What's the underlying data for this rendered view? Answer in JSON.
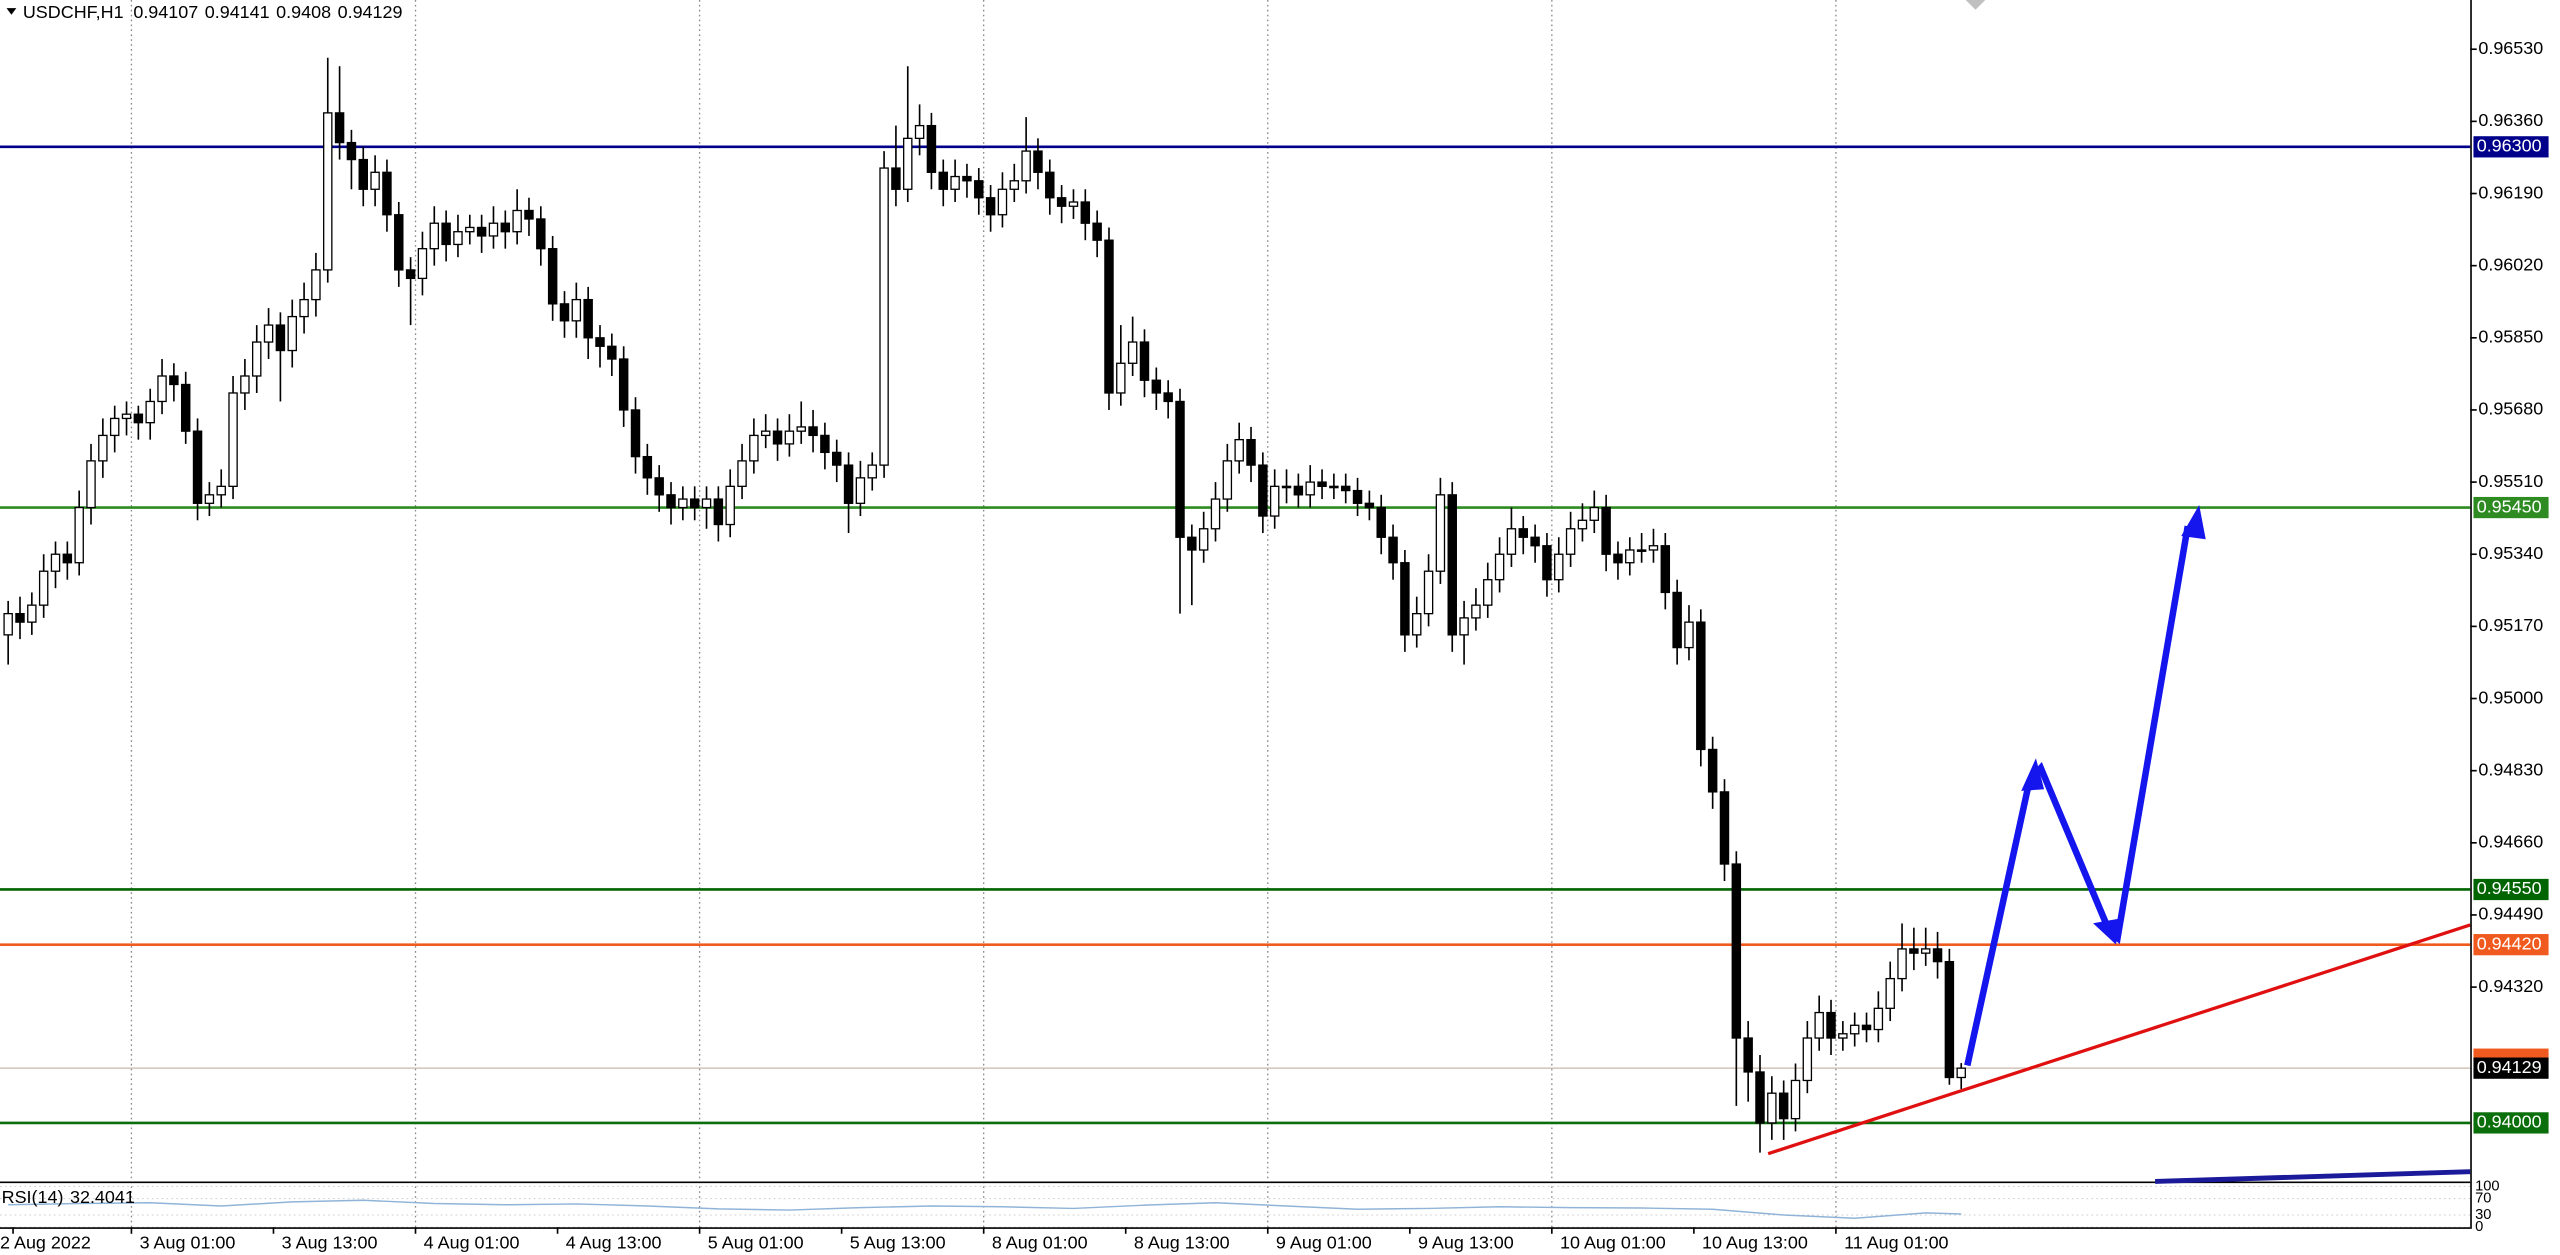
{
  "chart_data": {
    "type": "candlestick",
    "title": "USDCHF,H1",
    "ylim": [
      0.93862,
      0.96646
    ],
    "yticks": [
      {
        "value": 0.9653,
        "label": "0.96530"
      },
      {
        "value": 0.9636,
        "label": "0.96360"
      },
      {
        "value": 0.9619,
        "label": "0.96190"
      },
      {
        "value": 0.9602,
        "label": "0.96020"
      },
      {
        "value": 0.9585,
        "label": "0.95850"
      },
      {
        "value": 0.9568,
        "label": "0.95680"
      },
      {
        "value": 0.9551,
        "label": "0.95510"
      },
      {
        "value": 0.9534,
        "label": "0.95340"
      },
      {
        "value": 0.9517,
        "label": "0.95170"
      },
      {
        "value": 0.95,
        "label": "0.95000"
      },
      {
        "value": 0.9483,
        "label": "0.94830"
      },
      {
        "value": 0.9466,
        "label": "0.94660"
      },
      {
        "value": 0.9449,
        "label": "0.94490"
      },
      {
        "value": 0.9432,
        "label": "0.94320"
      }
    ],
    "levels": [
      {
        "value": 0.963,
        "label": "0.96300",
        "color": "#00008b"
      },
      {
        "value": 0.9545,
        "label": "0.95450",
        "color": "#2e8b22"
      },
      {
        "value": 0.9455,
        "label": "0.94550",
        "color": "#006400"
      },
      {
        "value": 0.9442,
        "label": "0.94420",
        "color": "#f05a1e"
      },
      {
        "value": 0.94,
        "label": "0.94000",
        "color": "#0a6e0a"
      }
    ],
    "categories": [
      "2 Aug 2022",
      null,
      null,
      null,
      null,
      null,
      null,
      null,
      null,
      null,
      "3 Aug 01:00",
      null,
      null,
      null,
      null,
      null,
      null,
      null,
      null,
      null,
      null,
      null,
      "3 Aug 13:00",
      null,
      null,
      null,
      null,
      null,
      null,
      null,
      null,
      null,
      null,
      null,
      "4 Aug 01:00",
      null,
      null,
      null,
      null,
      null,
      null,
      null,
      null,
      null,
      null,
      null,
      "4 Aug 13:00",
      null,
      null,
      null,
      null,
      null,
      null,
      null,
      null,
      null,
      null,
      null,
      "5 Aug 01:00",
      null,
      null,
      null,
      null,
      null,
      null,
      null,
      null,
      null,
      null,
      null,
      "5 Aug 13:00",
      null,
      null,
      null,
      null,
      null,
      null,
      null,
      null,
      null,
      null,
      null,
      "8 Aug 01:00",
      null,
      null,
      null,
      null,
      null,
      null,
      null,
      null,
      null,
      null,
      null,
      "8 Aug 13:00",
      null,
      null,
      null,
      null,
      null,
      null,
      null,
      null,
      null,
      null,
      null,
      "9 Aug 01:00",
      null,
      null,
      null,
      null,
      null,
      null,
      null,
      null,
      null,
      null,
      null,
      "9 Aug 13:00",
      null,
      null,
      null,
      null,
      null,
      null,
      null,
      null,
      null,
      null,
      null,
      "10 Aug 01:00",
      null,
      null,
      null,
      null,
      null,
      null,
      null,
      null,
      null,
      null,
      null,
      "10 Aug 13:00",
      null,
      null,
      null,
      null,
      null,
      null,
      null,
      null,
      null,
      null,
      null,
      "11 Aug 01:00",
      null,
      null,
      null,
      null,
      null,
      null,
      null,
      null,
      null,
      null,
      null
    ],
    "candles": [
      [
        0.9515,
        0.9523,
        0.9508,
        0.952
      ],
      [
        0.952,
        0.9524,
        0.9514,
        0.9518
      ],
      [
        0.9518,
        0.9525,
        0.9515,
        0.9522
      ],
      [
        0.9522,
        0.9534,
        0.9519,
        0.953
      ],
      [
        0.953,
        0.9537,
        0.9526,
        0.9534
      ],
      [
        0.9534,
        0.9537,
        0.9528,
        0.9532
      ],
      [
        0.9532,
        0.9549,
        0.9529,
        0.9545
      ],
      [
        0.9545,
        0.956,
        0.9541,
        0.9556
      ],
      [
        0.9556,
        0.9566,
        0.9552,
        0.9562
      ],
      [
        0.9562,
        0.9569,
        0.9558,
        0.9566
      ],
      [
        0.9566,
        0.957,
        0.9562,
        0.9567
      ],
      [
        0.9567,
        0.9569,
        0.9561,
        0.9565
      ],
      [
        0.9565,
        0.9573,
        0.9561,
        0.957
      ],
      [
        0.957,
        0.958,
        0.9567,
        0.9576
      ],
      [
        0.9576,
        0.9579,
        0.957,
        0.9574
      ],
      [
        0.9574,
        0.9577,
        0.956,
        0.9563
      ],
      [
        0.9563,
        0.9566,
        0.9542,
        0.9546
      ],
      [
        0.9546,
        0.9551,
        0.9543,
        0.9548
      ],
      [
        0.9548,
        0.9554,
        0.9545,
        0.955
      ],
      [
        0.955,
        0.9576,
        0.9547,
        0.9572
      ],
      [
        0.9572,
        0.958,
        0.9568,
        0.9576
      ],
      [
        0.9576,
        0.9588,
        0.9572,
        0.9584
      ],
      [
        0.9584,
        0.9592,
        0.958,
        0.9588
      ],
      [
        0.9588,
        0.9591,
        0.957,
        0.9582
      ],
      [
        0.9582,
        0.9594,
        0.9578,
        0.959
      ],
      [
        0.959,
        0.9598,
        0.9586,
        0.9594
      ],
      [
        0.9594,
        0.9605,
        0.959,
        0.9601
      ],
      [
        0.9601,
        0.9651,
        0.9598,
        0.9638
      ],
      [
        0.9638,
        0.9649,
        0.9627,
        0.9631
      ],
      [
        0.9631,
        0.9634,
        0.962,
        0.9627
      ],
      [
        0.9627,
        0.963,
        0.9616,
        0.962
      ],
      [
        0.962,
        0.9628,
        0.9616,
        0.9624
      ],
      [
        0.9624,
        0.9627,
        0.961,
        0.9614
      ],
      [
        0.9614,
        0.9617,
        0.9597,
        0.9601
      ],
      [
        0.9601,
        0.9604,
        0.9588,
        0.9599
      ],
      [
        0.9599,
        0.961,
        0.9595,
        0.9606
      ],
      [
        0.9606,
        0.9616,
        0.9602,
        0.9612
      ],
      [
        0.9612,
        0.9615,
        0.9603,
        0.9607
      ],
      [
        0.9607,
        0.9614,
        0.9604,
        0.961
      ],
      [
        0.961,
        0.9614,
        0.9607,
        0.9611
      ],
      [
        0.9611,
        0.9614,
        0.9605,
        0.9609
      ],
      [
        0.9609,
        0.9616,
        0.9606,
        0.9612
      ],
      [
        0.9612,
        0.9615,
        0.9606,
        0.961
      ],
      [
        0.961,
        0.962,
        0.9607,
        0.9615
      ],
      [
        0.9615,
        0.9618,
        0.9609,
        0.9613
      ],
      [
        0.9613,
        0.9616,
        0.9602,
        0.9606
      ],
      [
        0.9606,
        0.9609,
        0.9589,
        0.9593
      ],
      [
        0.9593,
        0.9596,
        0.9585,
        0.9589
      ],
      [
        0.9589,
        0.9598,
        0.9585,
        0.9594
      ],
      [
        0.9594,
        0.9597,
        0.958,
        0.9585
      ],
      [
        0.9585,
        0.9588,
        0.9578,
        0.9583
      ],
      [
        0.9583,
        0.9586,
        0.9576,
        0.958
      ],
      [
        0.958,
        0.9583,
        0.9564,
        0.9568
      ],
      [
        0.9568,
        0.9571,
        0.9553,
        0.9557
      ],
      [
        0.9557,
        0.956,
        0.9548,
        0.9552
      ],
      [
        0.9552,
        0.9555,
        0.9544,
        0.9548
      ],
      [
        0.9548,
        0.9551,
        0.9541,
        0.9545
      ],
      [
        0.9545,
        0.955,
        0.9542,
        0.9547
      ],
      [
        0.9547,
        0.955,
        0.9542,
        0.9545
      ],
      [
        0.9545,
        0.955,
        0.954,
        0.9547
      ],
      [
        0.9547,
        0.955,
        0.9537,
        0.9541
      ],
      [
        0.9541,
        0.9554,
        0.9538,
        0.955
      ],
      [
        0.955,
        0.956,
        0.9547,
        0.9556
      ],
      [
        0.9556,
        0.9566,
        0.9553,
        0.9562
      ],
      [
        0.9562,
        0.9567,
        0.9559,
        0.9563
      ],
      [
        0.9563,
        0.9566,
        0.9556,
        0.956
      ],
      [
        0.956,
        0.9567,
        0.9557,
        0.9563
      ],
      [
        0.9563,
        0.957,
        0.956,
        0.9564
      ],
      [
        0.9564,
        0.9568,
        0.9558,
        0.9562
      ],
      [
        0.9562,
        0.9565,
        0.9554,
        0.9558
      ],
      [
        0.9558,
        0.9561,
        0.9551,
        0.9555
      ],
      [
        0.9555,
        0.9558,
        0.9539,
        0.9546
      ],
      [
        0.9546,
        0.9556,
        0.9543,
        0.9552
      ],
      [
        0.9552,
        0.9558,
        0.9549,
        0.9555
      ],
      [
        0.9555,
        0.9629,
        0.9552,
        0.9625
      ],
      [
        0.9625,
        0.9635,
        0.9616,
        0.962
      ],
      [
        0.962,
        0.9649,
        0.9617,
        0.9632
      ],
      [
        0.9632,
        0.964,
        0.9628,
        0.9635
      ],
      [
        0.9635,
        0.9638,
        0.962,
        0.9624
      ],
      [
        0.9624,
        0.9627,
        0.9616,
        0.962
      ],
      [
        0.962,
        0.9627,
        0.9617,
        0.9623
      ],
      [
        0.9623,
        0.9626,
        0.9618,
        0.9622
      ],
      [
        0.9622,
        0.9625,
        0.9614,
        0.9618
      ],
      [
        0.9618,
        0.9621,
        0.961,
        0.9614
      ],
      [
        0.9614,
        0.9624,
        0.9611,
        0.962
      ],
      [
        0.962,
        0.9626,
        0.9617,
        0.9622
      ],
      [
        0.9622,
        0.9637,
        0.9619,
        0.9629
      ],
      [
        0.9629,
        0.9632,
        0.962,
        0.9624
      ],
      [
        0.9624,
        0.9627,
        0.9614,
        0.9618
      ],
      [
        0.9618,
        0.9621,
        0.9612,
        0.9616
      ],
      [
        0.9616,
        0.962,
        0.9613,
        0.9617
      ],
      [
        0.9617,
        0.962,
        0.9608,
        0.9612
      ],
      [
        0.9612,
        0.9615,
        0.9604,
        0.9608
      ],
      [
        0.9608,
        0.9611,
        0.9568,
        0.9572
      ],
      [
        0.9572,
        0.9588,
        0.9569,
        0.9579
      ],
      [
        0.9579,
        0.959,
        0.9576,
        0.9584
      ],
      [
        0.9584,
        0.9587,
        0.9571,
        0.9575
      ],
      [
        0.9575,
        0.9578,
        0.9568,
        0.9572
      ],
      [
        0.9572,
        0.9575,
        0.9566,
        0.957
      ],
      [
        0.957,
        0.9573,
        0.952,
        0.9538
      ],
      [
        0.9538,
        0.9541,
        0.9522,
        0.9535
      ],
      [
        0.9535,
        0.9544,
        0.9532,
        0.954
      ],
      [
        0.954,
        0.9551,
        0.9537,
        0.9547
      ],
      [
        0.9547,
        0.956,
        0.9544,
        0.9556
      ],
      [
        0.9556,
        0.9565,
        0.9553,
        0.9561
      ],
      [
        0.9561,
        0.9564,
        0.9551,
        0.9555
      ],
      [
        0.9555,
        0.9558,
        0.9539,
        0.9543
      ],
      [
        0.9543,
        0.9554,
        0.954,
        0.955
      ],
      [
        0.955,
        0.9554,
        0.9546,
        0.955
      ],
      [
        0.955,
        0.9553,
        0.9545,
        0.9548
      ],
      [
        0.9548,
        0.9555,
        0.9545,
        0.9551
      ],
      [
        0.9551,
        0.9554,
        0.9547,
        0.955
      ],
      [
        0.955,
        0.9553,
        0.9547,
        0.955
      ],
      [
        0.955,
        0.9553,
        0.9546,
        0.9549
      ],
      [
        0.9549,
        0.9552,
        0.9543,
        0.9546
      ],
      [
        0.9546,
        0.9549,
        0.9542,
        0.9545
      ],
      [
        0.9545,
        0.9548,
        0.9534,
        0.9538
      ],
      [
        0.9538,
        0.9541,
        0.9528,
        0.9532
      ],
      [
        0.9532,
        0.9535,
        0.9511,
        0.9515
      ],
      [
        0.9515,
        0.9524,
        0.9512,
        0.952
      ],
      [
        0.952,
        0.9534,
        0.9517,
        0.953
      ],
      [
        0.953,
        0.9552,
        0.9527,
        0.9548
      ],
      [
        0.9548,
        0.9551,
        0.9511,
        0.9515
      ],
      [
        0.9515,
        0.9523,
        0.9508,
        0.9519
      ],
      [
        0.9519,
        0.9526,
        0.9516,
        0.9522
      ],
      [
        0.9522,
        0.9532,
        0.9519,
        0.9528
      ],
      [
        0.9528,
        0.9538,
        0.9525,
        0.9534
      ],
      [
        0.9534,
        0.9545,
        0.9531,
        0.954
      ],
      [
        0.954,
        0.9543,
        0.9534,
        0.9538
      ],
      [
        0.9538,
        0.9541,
        0.9532,
        0.9536
      ],
      [
        0.9536,
        0.9539,
        0.9524,
        0.9528
      ],
      [
        0.9528,
        0.9538,
        0.9525,
        0.9534
      ],
      [
        0.9534,
        0.9544,
        0.9531,
        0.954
      ],
      [
        0.954,
        0.9546,
        0.9537,
        0.9542
      ],
      [
        0.9542,
        0.9549,
        0.9539,
        0.9545
      ],
      [
        0.9545,
        0.9548,
        0.953,
        0.9534
      ],
      [
        0.9534,
        0.9537,
        0.9528,
        0.9532
      ],
      [
        0.9532,
        0.9538,
        0.9529,
        0.9535
      ],
      [
        0.9535,
        0.9539,
        0.9532,
        0.9535
      ],
      [
        0.9535,
        0.954,
        0.9532,
        0.9536
      ],
      [
        0.9536,
        0.9539,
        0.9521,
        0.9525
      ],
      [
        0.9525,
        0.9528,
        0.9508,
        0.9512
      ],
      [
        0.9512,
        0.9522,
        0.9509,
        0.9518
      ],
      [
        0.9518,
        0.9521,
        0.9484,
        0.9488
      ],
      [
        0.9488,
        0.9491,
        0.9474,
        0.9478
      ],
      [
        0.9478,
        0.9481,
        0.9457,
        0.9461
      ],
      [
        0.9461,
        0.9464,
        0.9404,
        0.942
      ],
      [
        0.942,
        0.9424,
        0.9405,
        0.9412
      ],
      [
        0.9412,
        0.9416,
        0.9393,
        0.94
      ],
      [
        0.94,
        0.9411,
        0.9396,
        0.9407
      ],
      [
        0.9407,
        0.941,
        0.9396,
        0.9401
      ],
      [
        0.9401,
        0.9414,
        0.9398,
        0.941
      ],
      [
        0.941,
        0.9424,
        0.9407,
        0.942
      ],
      [
        0.942,
        0.943,
        0.9417,
        0.9426
      ],
      [
        0.9426,
        0.9429,
        0.9416,
        0.942
      ],
      [
        0.942,
        0.9424,
        0.9417,
        0.9421
      ],
      [
        0.9421,
        0.9426,
        0.9418,
        0.9423
      ],
      [
        0.9423,
        0.9426,
        0.9419,
        0.9422
      ],
      [
        0.9422,
        0.9431,
        0.9419,
        0.9427
      ],
      [
        0.9427,
        0.9438,
        0.9424,
        0.9434
      ],
      [
        0.9434,
        0.9447,
        0.9431,
        0.9441
      ],
      [
        0.9441,
        0.9446,
        0.9436,
        0.944
      ],
      [
        0.944,
        0.9446,
        0.9437,
        0.9441
      ],
      [
        0.9441,
        0.9445,
        0.9434,
        0.9438
      ],
      [
        0.9438,
        0.9441,
        0.9409,
        0.94107
      ],
      [
        0.94107,
        0.94141,
        0.9408,
        0.94129
      ]
    ],
    "rsi": {
      "label": "RSI(14)",
      "x": [
        0,
        6,
        12,
        18,
        24,
        30,
        36,
        42,
        48,
        54,
        60,
        66,
        72,
        78,
        84,
        90,
        96,
        102,
        108,
        114,
        120,
        126,
        132,
        138,
        144,
        150,
        156,
        162,
        165
      ],
      "values": [
        55,
        58,
        60,
        52,
        62,
        66,
        58,
        55,
        57,
        52,
        45,
        42,
        48,
        52,
        50,
        46,
        54,
        60,
        52,
        44,
        46,
        50,
        48,
        47,
        44,
        30,
        22,
        35,
        32.4041
      ],
      "ylim": [
        0,
        100
      ],
      "yticks": [
        100,
        70,
        30,
        0
      ]
    }
  }
}
